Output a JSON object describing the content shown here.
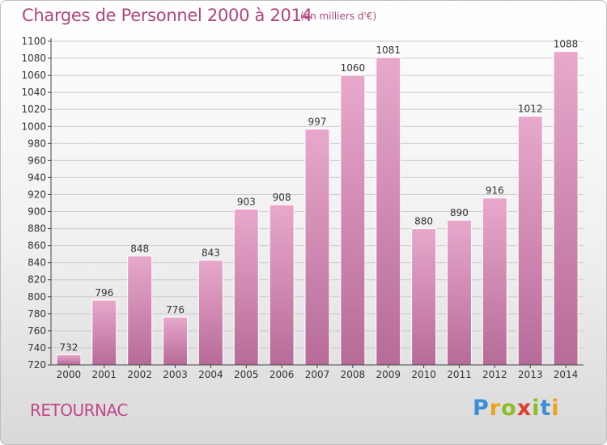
{
  "header": {
    "title": "Charges de Personnel 2000 à 2014",
    "subtitle": "(en milliers d'€)"
  },
  "footer": {
    "commune": "RETOURNAC",
    "logo_text": "Proxiti",
    "logo_letters": [
      {
        "char": "P",
        "color": "#3a8fd6"
      },
      {
        "char": "r",
        "color": "#f0a21a"
      },
      {
        "char": "o",
        "color": "#8cbf26"
      },
      {
        "char": "x",
        "color": "#e03c31"
      },
      {
        "char": "i",
        "color": "#8cbf26"
      },
      {
        "char": "t",
        "color": "#3a8fd6"
      },
      {
        "char": "i",
        "color": "#f0a21a"
      }
    ]
  },
  "colors": {
    "title": "#b0457d",
    "bar_top": "#e8a8cc",
    "bar_bottom": "#b76b98",
    "axis": "#444444",
    "grid": "#cccccc"
  },
  "chart_data": {
    "type": "bar",
    "title": "Charges de Personnel 2000 à 2014",
    "subtitle": "(en milliers d'€)",
    "categories": [
      "2000",
      "2001",
      "2002",
      "2003",
      "2004",
      "2005",
      "2006",
      "2007",
      "2008",
      "2009",
      "2010",
      "2011",
      "2012",
      "2013",
      "2014"
    ],
    "values": [
      732,
      796,
      848,
      776,
      843,
      903,
      908,
      997,
      1060,
      1081,
      880,
      890,
      916,
      1012,
      1088
    ],
    "ylim": [
      720,
      1100
    ],
    "yticks": [
      720,
      740,
      760,
      780,
      800,
      820,
      840,
      860,
      880,
      900,
      920,
      940,
      960,
      980,
      1000,
      1020,
      1040,
      1060,
      1080,
      1100
    ],
    "grid": true,
    "xlabel": "",
    "ylabel": ""
  }
}
